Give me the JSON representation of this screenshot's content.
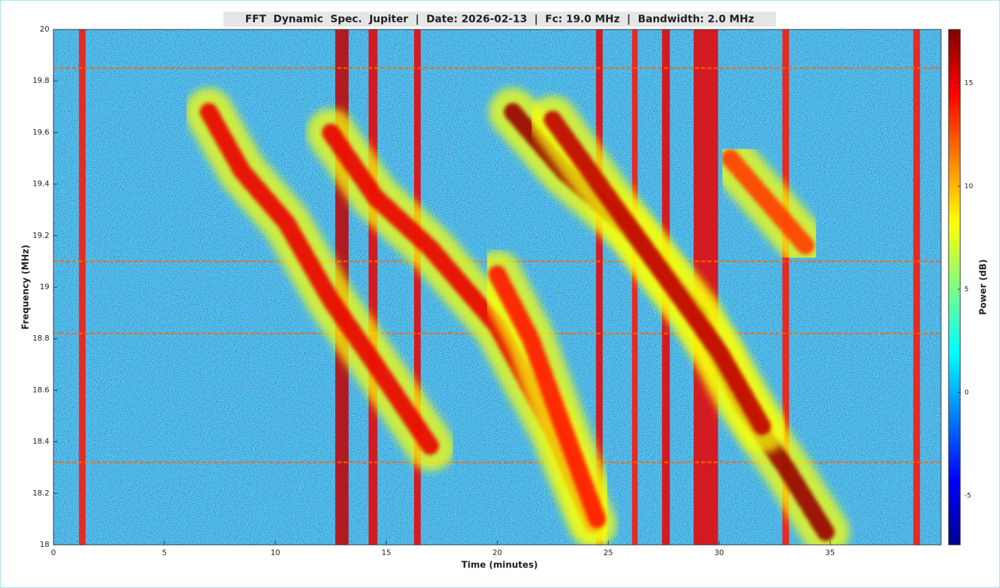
{
  "chart_data": {
    "type": "spectrogram",
    "title": "FFT  Dynamic  Spec.  Jupiter  |  Date: 2026-02-13  |  Fc: 19.0 MHz  |  Bandwidth: 2.0 MHz",
    "x_label": "Time (minutes)",
    "y_label": "Frequency (MHz)",
    "colorbar_label": "Power (dB)",
    "xlim": [
      0,
      40
    ],
    "xticks": [
      0,
      5,
      10,
      15,
      20,
      25,
      30,
      35
    ],
    "ylim": [
      18,
      20
    ],
    "yticks": [
      18,
      18.2,
      18.4,
      18.6,
      18.8,
      19,
      19.2,
      19.4,
      19.6,
      19.8,
      20
    ],
    "clim": [
      -7.4,
      17.6
    ],
    "cticks": [
      -5,
      0,
      5,
      10,
      15
    ],
    "colormap": "jet",
    "halo_power": 8,
    "series": [
      {
        "x": [
          7.0,
          8.5,
          10.5,
          12.5,
          14.5,
          17.0
        ],
        "values": [
          19.68,
          19.45,
          19.25,
          18.95,
          18.7,
          18.38
        ],
        "power": 15
      },
      {
        "x": [
          12.5,
          14.5,
          17.0,
          20.0,
          22.5,
          24.3
        ],
        "values": [
          19.6,
          19.35,
          19.15,
          18.85,
          18.45,
          18.08
        ],
        "power": 15
      },
      {
        "x": [
          20.0,
          21.5,
          23.0,
          24.5
        ],
        "values": [
          19.05,
          18.8,
          18.45,
          18.1
        ],
        "power": 14
      },
      {
        "x": [
          20.7,
          23.0,
          26.0,
          29.0,
          31.0,
          33.0,
          34.8
        ],
        "values": [
          19.68,
          19.45,
          19.22,
          18.9,
          18.55,
          18.3,
          18.05
        ],
        "power": 17
      },
      {
        "x": [
          22.5,
          25.0,
          27.5,
          30.0,
          32.0
        ],
        "values": [
          19.65,
          19.35,
          19.05,
          18.75,
          18.45
        ],
        "power": 16
      },
      {
        "x": [
          30.5,
          32.0,
          34.0
        ],
        "values": [
          19.5,
          19.35,
          19.15
        ],
        "power": 13
      }
    ],
    "rfi_bands": {
      "x": [
        1.3,
        13.0,
        14.4,
        16.4,
        24.6,
        26.2,
        27.6,
        29.4,
        33.0,
        38.9
      ],
      "widths": [
        0.3,
        0.6,
        0.4,
        0.3,
        0.3,
        0.25,
        0.35,
        1.1,
        0.3,
        0.3
      ],
      "values": [
        14,
        16,
        15,
        15,
        15,
        14,
        15,
        15,
        14,
        14
      ]
    },
    "rfi_lines": {
      "values": [
        19.85,
        19.1,
        18.82,
        18.32
      ],
      "power": 12
    }
  }
}
